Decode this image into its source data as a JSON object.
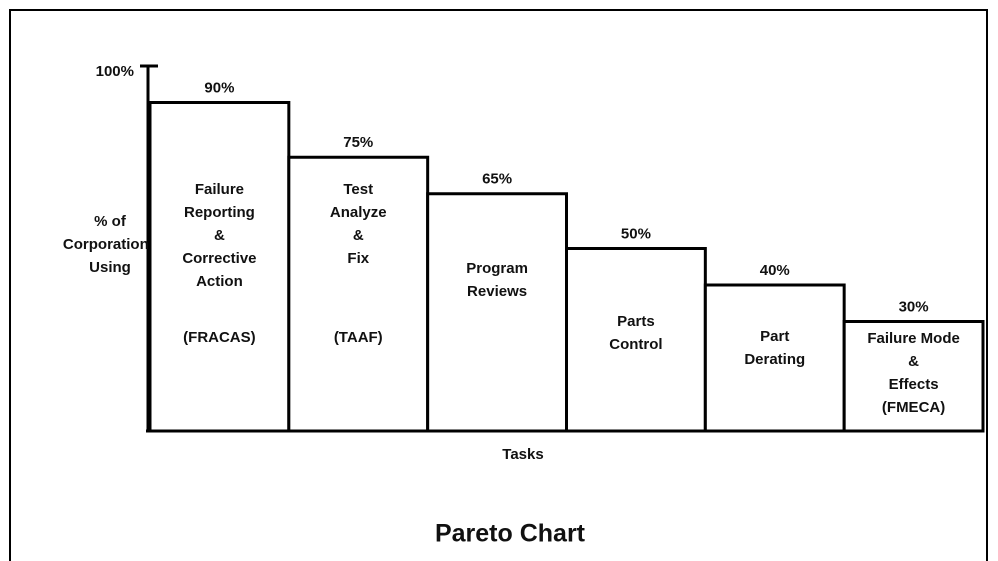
{
  "chart_data": {
    "type": "bar",
    "title": "Pareto Chart",
    "x_label": "Tasks",
    "y_label": [
      "% of",
      "Corporations",
      "Using"
    ],
    "categories": [
      [
        "Failure",
        "Reporting",
        "&",
        "Corrective",
        "Action"
      ],
      [
        "Test",
        "Analyze",
        "&",
        "Fix"
      ],
      [
        "Program",
        "Reviews"
      ],
      [
        "Parts",
        "Control"
      ],
      [
        "Part",
        "Derating"
      ],
      [
        "Failure Mode",
        "&",
        "Effects",
        "(FMECA)"
      ]
    ],
    "abbreviations": [
      "(FRACAS)",
      "(TAAF)",
      null,
      null,
      null,
      null
    ],
    "values": [
      90,
      75,
      65,
      50,
      40,
      30
    ],
    "value_labels": [
      "90%",
      "75%",
      "65%",
      "50%",
      "40%",
      "30%"
    ],
    "color": "#ffffff",
    "ylim": [
      0,
      100
    ],
    "yticks": [
      {
        "value": 100,
        "label": "100%"
      }
    ],
    "grid": false
  }
}
